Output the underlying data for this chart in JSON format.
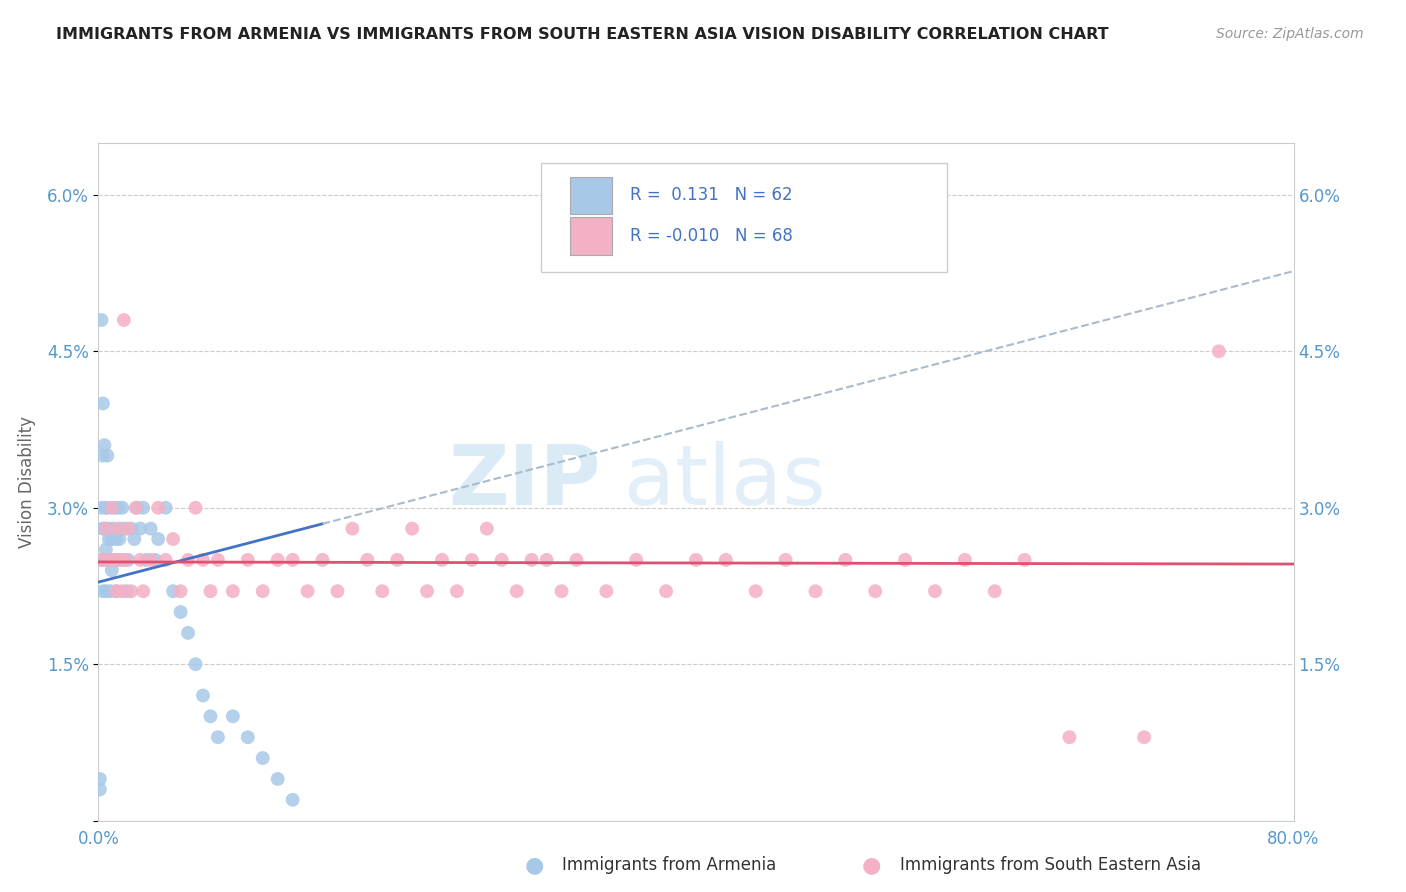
{
  "title": "IMMIGRANTS FROM ARMENIA VS IMMIGRANTS FROM SOUTH EASTERN ASIA VISION DISABILITY CORRELATION CHART",
  "source": "Source: ZipAtlas.com",
  "ylabel": "Vision Disability",
  "xlim": [
    0.0,
    0.8
  ],
  "ylim": [
    0.0,
    0.065
  ],
  "yticks": [
    0.0,
    0.015,
    0.03,
    0.045,
    0.06
  ],
  "ytick_labels": [
    "",
    "1.5%",
    "3.0%",
    "4.5%",
    "6.0%"
  ],
  "xticks": [
    0.0,
    0.8
  ],
  "xtick_labels": [
    "0.0%",
    "80.0%"
  ],
  "r_armenia": 0.131,
  "n_armenia": 62,
  "r_sea": -0.01,
  "n_sea": 68,
  "color_armenia": "#a8c8e8",
  "color_sea": "#f4b0c4",
  "line_armenia": "#4472c4",
  "line_sea": "#e05070",
  "line_dashed": "#aabbcc",
  "watermark_zip": "ZIP",
  "watermark_atlas": "atlas",
  "legend_entries": [
    "Immigrants from Armenia",
    "Immigrants from South Eastern Asia"
  ],
  "armenia_x": [
    0.001,
    0.002,
    0.002,
    0.003,
    0.003,
    0.004,
    0.004,
    0.005,
    0.005,
    0.006,
    0.006,
    0.007,
    0.007,
    0.008,
    0.008,
    0.009,
    0.009,
    0.01,
    0.01,
    0.011,
    0.011,
    0.012,
    0.012,
    0.013,
    0.013,
    0.014,
    0.015,
    0.015,
    0.016,
    0.017,
    0.018,
    0.019,
    0.02,
    0.022,
    0.024,
    0.026,
    0.028,
    0.03,
    0.032,
    0.035,
    0.038,
    0.04,
    0.045,
    0.05,
    0.055,
    0.06,
    0.065,
    0.07,
    0.075,
    0.08,
    0.09,
    0.1,
    0.11,
    0.12,
    0.13,
    0.002,
    0.003,
    0.004,
    0.005,
    0.003,
    0.006,
    0.001
  ],
  "armenia_y": [
    0.004,
    0.025,
    0.03,
    0.022,
    0.028,
    0.025,
    0.028,
    0.022,
    0.026,
    0.025,
    0.03,
    0.027,
    0.028,
    0.025,
    0.022,
    0.024,
    0.027,
    0.025,
    0.028,
    0.025,
    0.03,
    0.027,
    0.022,
    0.025,
    0.03,
    0.027,
    0.025,
    0.028,
    0.03,
    0.025,
    0.028,
    0.022,
    0.025,
    0.028,
    0.027,
    0.03,
    0.028,
    0.03,
    0.025,
    0.028,
    0.025,
    0.027,
    0.03,
    0.022,
    0.02,
    0.018,
    0.015,
    0.012,
    0.01,
    0.008,
    0.01,
    0.008,
    0.006,
    0.004,
    0.002,
    0.048,
    0.04,
    0.036,
    0.03,
    0.035,
    0.035,
    0.003
  ],
  "sea_x": [
    0.003,
    0.005,
    0.007,
    0.009,
    0.01,
    0.012,
    0.013,
    0.015,
    0.016,
    0.017,
    0.018,
    0.02,
    0.022,
    0.025,
    0.028,
    0.03,
    0.035,
    0.04,
    0.045,
    0.05,
    0.055,
    0.06,
    0.065,
    0.07,
    0.075,
    0.08,
    0.09,
    0.1,
    0.11,
    0.12,
    0.13,
    0.14,
    0.15,
    0.16,
    0.17,
    0.18,
    0.19,
    0.2,
    0.21,
    0.22,
    0.23,
    0.24,
    0.25,
    0.26,
    0.27,
    0.28,
    0.29,
    0.3,
    0.31,
    0.32,
    0.34,
    0.36,
    0.38,
    0.4,
    0.42,
    0.44,
    0.46,
    0.48,
    0.5,
    0.52,
    0.54,
    0.56,
    0.58,
    0.6,
    0.62,
    0.65,
    0.7,
    0.75
  ],
  "sea_y": [
    0.025,
    0.028,
    0.025,
    0.03,
    0.025,
    0.022,
    0.028,
    0.025,
    0.022,
    0.048,
    0.025,
    0.028,
    0.022,
    0.03,
    0.025,
    0.022,
    0.025,
    0.03,
    0.025,
    0.027,
    0.022,
    0.025,
    0.03,
    0.025,
    0.022,
    0.025,
    0.022,
    0.025,
    0.022,
    0.025,
    0.025,
    0.022,
    0.025,
    0.022,
    0.028,
    0.025,
    0.022,
    0.025,
    0.028,
    0.022,
    0.025,
    0.022,
    0.025,
    0.028,
    0.025,
    0.022,
    0.025,
    0.025,
    0.022,
    0.025,
    0.022,
    0.025,
    0.022,
    0.025,
    0.025,
    0.022,
    0.025,
    0.022,
    0.025,
    0.022,
    0.025,
    0.022,
    0.025,
    0.022,
    0.025,
    0.008,
    0.008,
    0.045
  ]
}
